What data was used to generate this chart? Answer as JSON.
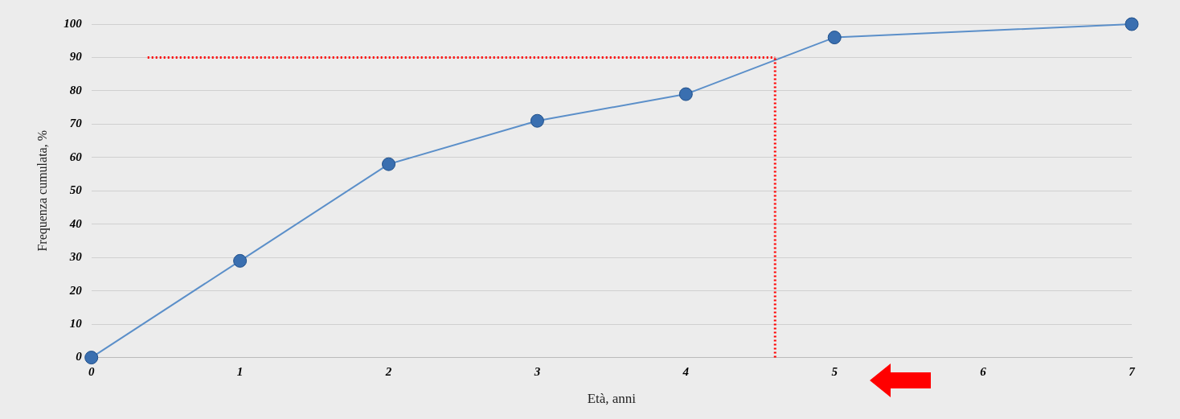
{
  "chart_data": {
    "type": "line",
    "xlabel": "Età, anni",
    "ylabel": "Frequenza cumulata, %",
    "x": [
      0,
      1,
      2,
      3,
      4,
      5,
      7
    ],
    "series": [
      {
        "color": "#5b8fc9",
        "values": [
          0,
          29,
          58,
          71,
          79,
          96,
          100
        ]
      }
    ],
    "xlim": [
      0,
      7
    ],
    "xticks": [
      0,
      1,
      2,
      3,
      4,
      5,
      6,
      7
    ],
    "ylim": [
      0,
      100
    ],
    "yticks": [
      0,
      10,
      20,
      30,
      40,
      50,
      60,
      70,
      80,
      90,
      100
    ],
    "grid": "y",
    "marker": "circle",
    "legend": false,
    "ref_lines": [
      {
        "axis": "y",
        "value": 90,
        "color": "#ff0000",
        "line_style": "dotted"
      },
      {
        "axis": "x",
        "value": 4.6,
        "color": "#ff0000",
        "line_style": "dotted"
      }
    ]
  }
}
